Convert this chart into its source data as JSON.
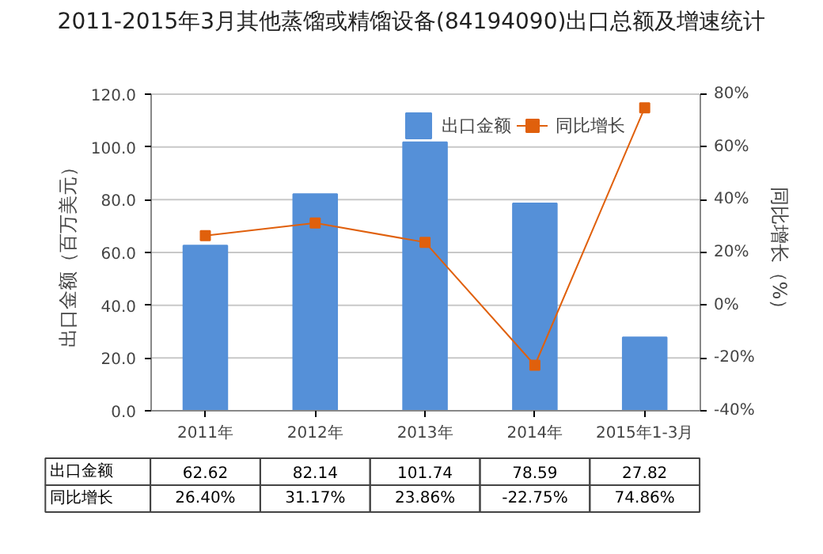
{
  "chart_data": {
    "type": "bar",
    "title": "2011-2015年3月其他蒸馏或精馏设备(84194090)出口总额及增速统计",
    "categories": [
      "2011年",
      "2012年",
      "2013年",
      "2014年",
      "2015年1-3月"
    ],
    "series": [
      {
        "name": "出口金额",
        "color": "#5590d8",
        "values": [
          62.62,
          82.14,
          101.74,
          78.59,
          27.82
        ],
        "value_labels": [
          "62.62",
          "82.14",
          "101.74",
          "78.59",
          "27.82"
        ]
      },
      {
        "name": "同比增长",
        "type": "line",
        "axis": "y2",
        "color": "#e0600c",
        "marker": "square",
        "values": [
          26.4,
          31.17,
          23.86,
          -22.75,
          74.86
        ],
        "value_labels": [
          "26.40%",
          "31.17%",
          "23.86%",
          "-22.75%",
          "74.86%"
        ]
      }
    ],
    "ylabel": "出口金额（百万美元）",
    "y2label": "同比增长（%）",
    "ylim": [
      0,
      120
    ],
    "yticks": [
      {
        "value": 0,
        "label": "0.0"
      },
      {
        "value": 20,
        "label": "20.0"
      },
      {
        "value": 40,
        "label": "40.0"
      },
      {
        "value": 60,
        "label": "60.0"
      },
      {
        "value": 80,
        "label": "80.0"
      },
      {
        "value": 100,
        "label": "100.0"
      },
      {
        "value": 120,
        "label": "120.0"
      }
    ],
    "y2lim": [
      -40,
      80
    ],
    "y2ticks": [
      {
        "value": -40,
        "label": "-40%"
      },
      {
        "value": -20,
        "label": "-20%"
      },
      {
        "value": 0,
        "label": "0%"
      },
      {
        "value": 20,
        "label": "20%"
      },
      {
        "value": 40,
        "label": "40%"
      },
      {
        "value": 60,
        "label": "60%"
      },
      {
        "value": 80,
        "label": "80%"
      }
    ],
    "grid": "y",
    "legend": "top right"
  }
}
